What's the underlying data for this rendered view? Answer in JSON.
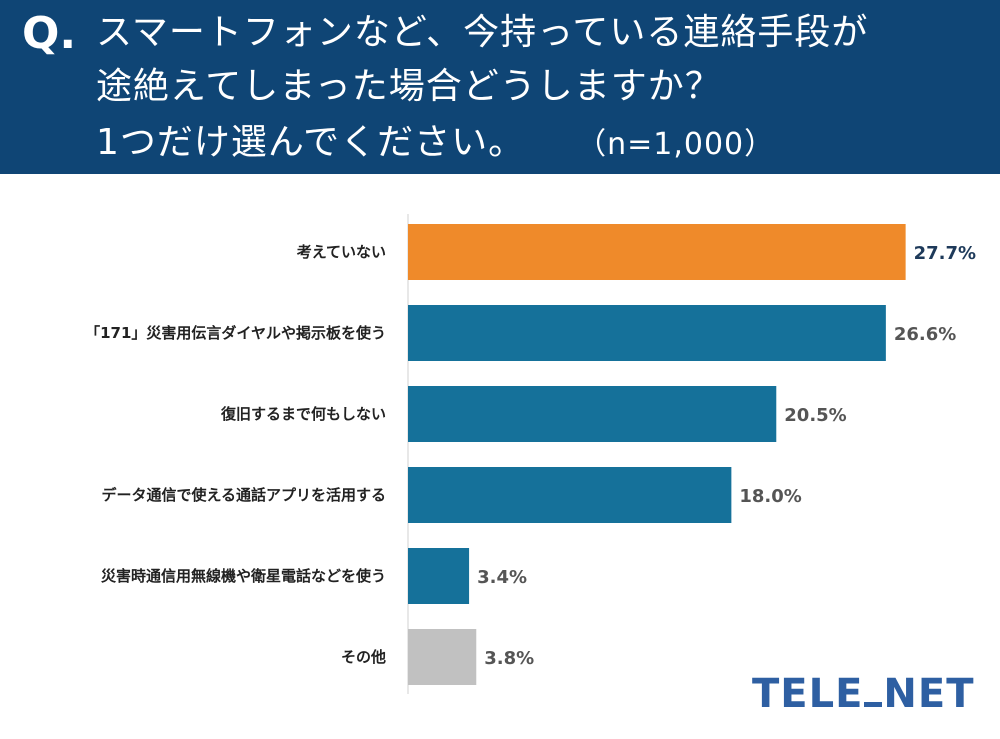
{
  "header": {
    "q_mark": "Q.",
    "line1": "スマートフォンなど、今持っている連絡手段が",
    "line2": "途絶えてしまった場合どうしますか？",
    "line3": "1つだけ選んでください。",
    "n": "（n=1,000）"
  },
  "logo": {
    "part1": "TELE",
    "part2": "NET"
  },
  "colors": {
    "header_bg": "#0f4575",
    "highlight": "#ef8a2a",
    "main": "#15719a",
    "other": "#c1c1c1"
  },
  "chart_data": {
    "type": "bar",
    "orientation": "horizontal",
    "categories": [
      "考えていない",
      "「171」災害用伝言ダイヤルや掲示板を使う",
      "復旧するまで何もしない",
      "データ通信で使える通話アプリを活用する",
      "災害時通信用無線機や衛星電話などを使う",
      "その他"
    ],
    "values": [
      27.7,
      26.6,
      20.5,
      18.0,
      3.4,
      3.8
    ],
    "value_labels": [
      "27.7%",
      "26.6%",
      "20.5%",
      "18.0%",
      "3.4%",
      "3.8%"
    ],
    "bar_colors": [
      "#ef8a2a",
      "#15719a",
      "#15719a",
      "#15719a",
      "#15719a",
      "#c1c1c1"
    ],
    "value_label_colors": [
      "#1e3a5a",
      "#555555",
      "#555555",
      "#555555",
      "#555555",
      "#555555"
    ],
    "xlim": [
      0,
      28.5
    ],
    "grid": false
  }
}
